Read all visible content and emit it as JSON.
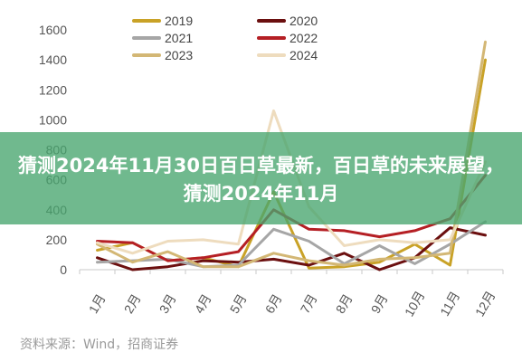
{
  "colors": {
    "2019": "#c9a227",
    "2020": "#6b0f0f",
    "2021": "#a6a6a6",
    "2022": "#b51f24",
    "2023": "#d3b775",
    "2024": "#eedcbe",
    "banner": "#48a56e",
    "axis": "#c8c8c8"
  },
  "banner": {
    "text": "猜测2024年11月30日百日草最新，百日草的未来展望，猜测2024年11月"
  },
  "source": "资料来源：Wind，招商证券",
  "chart_data": {
    "type": "line",
    "title": "",
    "xlabel": "",
    "ylabel": "",
    "categories": [
      "1月",
      "2月",
      "3月",
      "4月",
      "5月",
      "6月",
      "7月",
      "8月",
      "9月",
      "10月",
      "11月",
      "12月"
    ],
    "ylim": [
      0,
      1700
    ],
    "yticks": [
      0,
      200,
      400,
      600,
      800,
      1000,
      1200,
      1400,
      1600
    ],
    "grid": false,
    "legend_position": "top",
    "series": [
      {
        "name": "2019",
        "values": [
          130,
          180,
          60,
          80,
          20,
          520,
          10,
          20,
          50,
          170,
          30,
          1400
        ]
      },
      {
        "name": "2020",
        "values": [
          80,
          0,
          20,
          60,
          50,
          70,
          30,
          110,
          0,
          80,
          280,
          230
        ]
      },
      {
        "name": "2021",
        "values": [
          50,
          60,
          70,
          20,
          30,
          270,
          190,
          40,
          160,
          40,
          170,
          320
        ]
      },
      {
        "name": "2022",
        "values": [
          190,
          180,
          60,
          80,
          120,
          400,
          270,
          260,
          220,
          260,
          340,
          630
        ]
      },
      {
        "name": "2023",
        "values": [
          170,
          50,
          120,
          20,
          20,
          110,
          60,
          30,
          70,
          80,
          110,
          1520
        ]
      },
      {
        "name": "2024",
        "values": [
          180,
          110,
          190,
          200,
          170,
          1060,
          420,
          160,
          200,
          180,
          200,
          720
        ]
      }
    ]
  }
}
